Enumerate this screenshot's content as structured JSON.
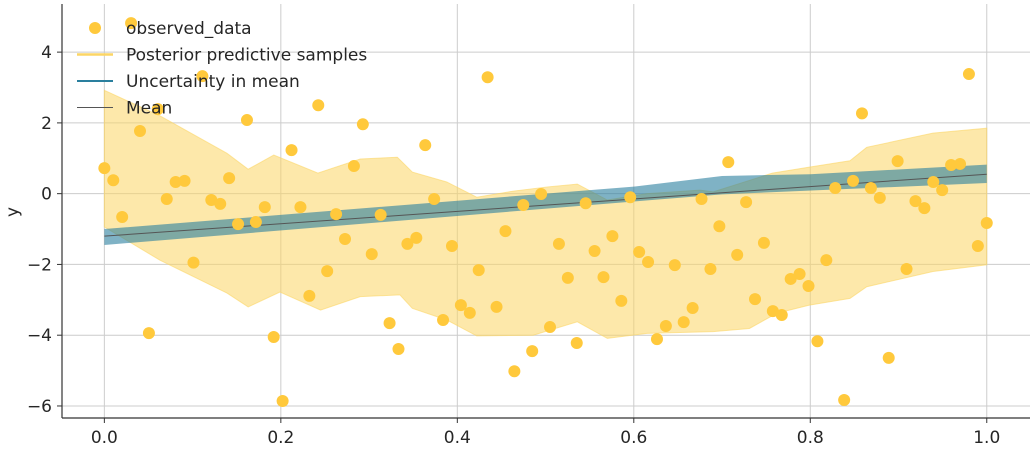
{
  "chart_data": {
    "type": "scatter",
    "title": "",
    "xlabel": "",
    "ylabel": "y",
    "xlim": [
      -0.048,
      1.049
    ],
    "ylim": [
      -6.34,
      5.36
    ],
    "xticks": [
      0.0,
      0.2,
      0.4,
      0.6,
      0.8,
      1.0
    ],
    "xtick_labels": [
      "0.0",
      "0.2",
      "0.4",
      "0.6",
      "0.8",
      "1.0"
    ],
    "yticks": [
      -6,
      -4,
      -2,
      0,
      2,
      4
    ],
    "ytick_labels": [
      "−6",
      "−4",
      "−2",
      "0",
      "2",
      "4"
    ],
    "grid": true,
    "legend_placement": "top-left",
    "colors": {
      "observed": "#ffc93c",
      "posterior": "#fcd565",
      "uncertainty": "#2a7f9e",
      "mean": "#555555",
      "grid": "#cccccc"
    },
    "legend": [
      {
        "label": "observed_data",
        "kind": "marker"
      },
      {
        "label": "Posterior predictive samples",
        "kind": "line-posterior"
      },
      {
        "label": "Uncertainty in mean",
        "kind": "line-uncertainty"
      },
      {
        "label": "Mean",
        "kind": "line-mean"
      }
    ],
    "observed_data": {
      "y": [
        0.72,
        0.38,
        -0.66,
        4.82,
        1.77,
        -3.94,
        2.39,
        -0.15,
        0.33,
        0.36,
        -1.95,
        3.32,
        -0.18,
        -0.29,
        0.44,
        -0.86,
        2.08,
        -0.8,
        -0.38,
        -4.05,
        -5.86,
        1.23,
        -0.38,
        -2.89,
        2.5,
        -2.19,
        -0.58,
        -1.28,
        0.78,
        1.96,
        -1.71,
        -0.6,
        -3.66,
        -4.39,
        -1.42,
        -1.25,
        1.37,
        -0.15,
        -3.57,
        -1.48,
        -3.15,
        -3.37,
        -2.16,
        3.29,
        -3.2,
        -1.06,
        -5.02,
        -0.32,
        -4.45,
        -0.01,
        -3.77,
        -1.42,
        -2.38,
        -4.22,
        -0.27,
        -1.62,
        -2.36,
        -1.2,
        -3.03,
        -0.1,
        -1.65,
        -1.93,
        -4.11,
        -3.74,
        -2.02,
        -3.63,
        -3.23,
        -0.15,
        -2.13,
        -0.92,
        0.89,
        -1.73,
        -0.24,
        -2.98,
        -1.39,
        -3.32,
        -3.43,
        -2.41,
        -2.27,
        -2.61,
        -4.17,
        -1.88,
        0.16,
        -5.83,
        0.36,
        2.27,
        0.16,
        -0.12,
        -4.64,
        0.92,
        -2.13,
        -0.21,
        -0.41,
        0.33,
        0.1,
        0.81,
        0.84,
        3.38,
        -1.48,
        -0.83
      ],
      "x_range": [
        0,
        1
      ]
    },
    "posterior_predictive_band": {
      "upper": [
        [
          0,
          2.92
        ],
        [
          0.063,
          2.2
        ],
        [
          0.139,
          1.14
        ],
        [
          0.163,
          0.69
        ],
        [
          0.192,
          1.09
        ],
        [
          0.242,
          0.58
        ],
        [
          0.29,
          0.98
        ],
        [
          0.332,
          1.03
        ],
        [
          0.349,
          0.61
        ],
        [
          0.388,
          0.33
        ],
        [
          0.422,
          -0.1
        ],
        [
          0.463,
          0.07
        ],
        [
          0.502,
          0.19
        ],
        [
          0.536,
          0.27
        ],
        [
          0.57,
          -0.18
        ],
        [
          0.615,
          0.0
        ],
        [
          0.675,
          0.1
        ],
        [
          0.69,
          0.05
        ],
        [
          0.757,
          0.58
        ],
        [
          0.799,
          0.75
        ],
        [
          0.845,
          0.93
        ],
        [
          0.864,
          1.31
        ],
        [
          0.939,
          1.71
        ],
        [
          1,
          1.85
        ]
      ],
      "lower": [
        [
          0,
          -0.94
        ],
        [
          0.063,
          -1.88
        ],
        [
          0.139,
          -2.81
        ],
        [
          0.163,
          -3.2
        ],
        [
          0.199,
          -2.78
        ],
        [
          0.245,
          -3.29
        ],
        [
          0.29,
          -2.91
        ],
        [
          0.335,
          -2.86
        ],
        [
          0.349,
          -3.24
        ],
        [
          0.388,
          -3.57
        ],
        [
          0.422,
          -4.02
        ],
        [
          0.486,
          -4.0
        ],
        [
          0.536,
          -3.62
        ],
        [
          0.57,
          -4.09
        ],
        [
          0.615,
          -3.95
        ],
        [
          0.69,
          -3.9
        ],
        [
          0.731,
          -3.81
        ],
        [
          0.762,
          -3.38
        ],
        [
          0.799,
          -3.15
        ],
        [
          0.845,
          -2.96
        ],
        [
          0.864,
          -2.63
        ],
        [
          0.939,
          -2.2
        ],
        [
          1,
          -2.01
        ]
      ]
    },
    "uncertainty_band": {
      "upper": [
        [
          0,
          -1.0
        ],
        [
          0.6,
          0.2
        ],
        [
          0.7,
          0.5
        ],
        [
          0.8,
          0.55
        ],
        [
          1,
          0.82
        ]
      ],
      "lower": [
        [
          0,
          -1.45
        ],
        [
          0.6,
          -0.22
        ],
        [
          0.7,
          -0.02
        ],
        [
          1,
          0.3
        ]
      ]
    },
    "mean_line": [
      [
        0,
        -1.2
      ],
      [
        1,
        0.55
      ]
    ]
  }
}
